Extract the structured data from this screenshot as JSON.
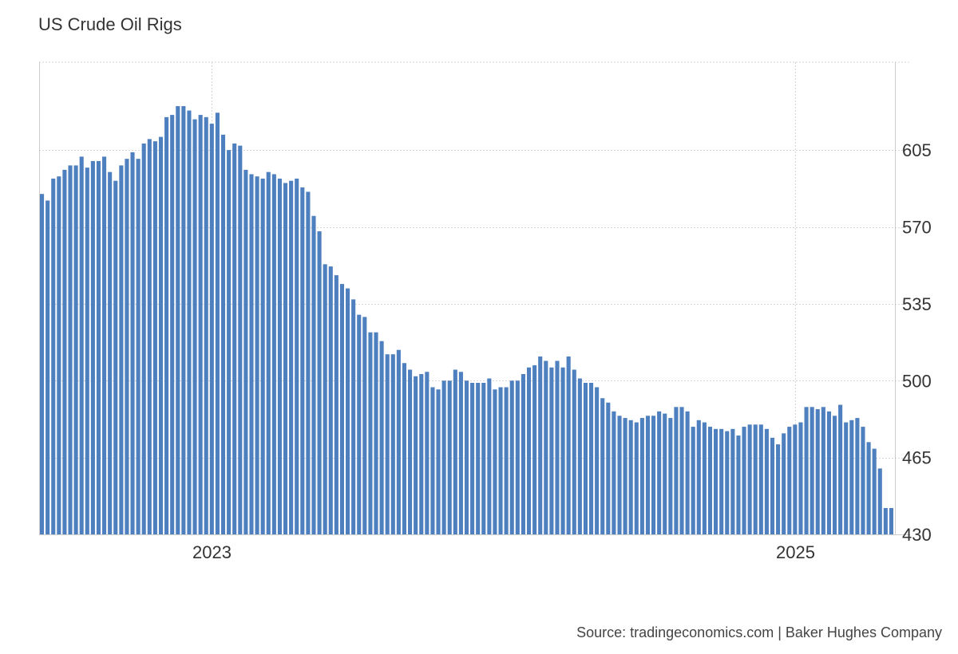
{
  "chart_data": {
    "type": "bar",
    "title": "US Crude Oil Rigs",
    "xlabel": "",
    "ylabel": "",
    "ylim": [
      430,
      645
    ],
    "yticks": [
      430,
      465,
      500,
      535,
      570,
      605
    ],
    "xticks": [
      {
        "label": "2023",
        "index": 30
      },
      {
        "label": "2025",
        "index": 133
      }
    ],
    "grid": true,
    "legend": "none",
    "bar_color": "#4e7fbf",
    "grid_color": "#d6d6d6",
    "source": "Source: tradingeconomics.com | Baker Hughes Company",
    "series": [
      {
        "values": [
          585,
          582,
          592,
          593,
          596,
          598,
          598,
          602,
          597,
          600,
          600,
          602,
          595,
          591,
          598,
          601,
          604,
          601,
          608,
          610,
          609,
          611,
          620,
          621,
          625,
          625,
          623,
          619,
          621,
          620,
          617,
          622,
          612,
          605,
          608,
          607,
          596,
          594,
          593,
          592,
          595,
          594,
          592,
          590,
          591,
          592,
          588,
          586,
          575,
          568,
          553,
          552,
          548,
          544,
          542,
          537,
          530,
          529,
          522,
          522,
          518,
          512,
          512,
          514,
          508,
          505,
          502,
          503,
          504,
          497,
          496,
          500,
          500,
          505,
          504,
          500,
          499,
          499,
          499,
          501,
          496,
          497,
          497,
          500,
          500,
          503,
          506,
          507,
          511,
          509,
          506,
          509,
          506,
          511,
          505,
          501,
          499,
          499,
          497,
          492,
          490,
          486,
          484,
          483,
          482,
          481,
          483,
          484,
          484,
          486,
          485,
          483,
          488,
          488,
          486,
          479,
          482,
          481,
          479,
          478,
          478,
          477,
          478,
          475,
          479,
          480,
          480,
          480,
          478,
          474,
          471,
          476,
          479,
          480,
          481,
          488,
          488,
          487,
          488,
          486,
          484,
          489,
          481,
          482,
          483,
          479,
          472,
          469,
          460,
          442,
          442
        ]
      }
    ]
  }
}
